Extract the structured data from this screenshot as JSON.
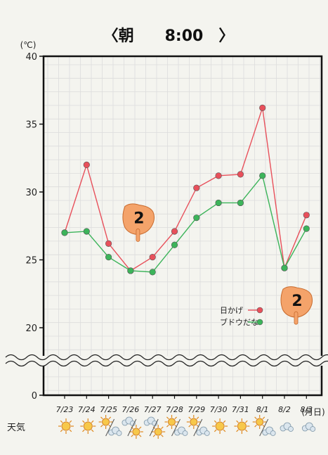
{
  "chart_data": {
    "type": "line",
    "title": "〈朝　　8:00　〉",
    "yunit": "(℃)",
    "xunit": "(月日)",
    "ylim": [
      0,
      40
    ],
    "yticks": [
      0,
      20,
      25,
      30,
      35,
      40
    ],
    "axis_break": "wave between 0 and 20",
    "grid": true,
    "legend_position": "bottom-right",
    "categories": [
      "7/23",
      "7/24",
      "7/25",
      "7/26",
      "7/27",
      "7/28",
      "7/29",
      "7/30",
      "7/31",
      "8/1",
      "8/2",
      "8/3"
    ],
    "series": [
      {
        "name": "日かげ",
        "color": "#e8505b",
        "values": [
          27.0,
          32.0,
          26.2,
          24.2,
          25.2,
          27.1,
          30.3,
          31.2,
          31.3,
          36.2,
          24.4,
          28.3
        ]
      },
      {
        "name": "ブドウだな",
        "color": "#3cb45a",
        "values": [
          27.0,
          27.1,
          25.2,
          24.2,
          24.1,
          26.1,
          28.1,
          29.2,
          29.2,
          31.2,
          24.4,
          27.3
        ]
      }
    ],
    "annotations": [
      {
        "label": "2",
        "category": "7/26",
        "icon": "pointing-hand-icon"
      },
      {
        "label": "2",
        "category": "8/2",
        "icon": "pointing-hand-icon"
      }
    ],
    "weather": {
      "label": "天気",
      "days": [
        {
          "date": "7/23",
          "icons": [
            "sun-icon"
          ]
        },
        {
          "date": "7/24",
          "icons": [
            "sun-icon"
          ]
        },
        {
          "date": "7/25",
          "icons": [
            "sun-icon",
            "cloud-icon"
          ]
        },
        {
          "date": "7/26",
          "icons": [
            "cloud-icon",
            "sun-icon"
          ]
        },
        {
          "date": "7/27",
          "icons": [
            "cloud-icon",
            "sun-icon"
          ]
        },
        {
          "date": "7/28",
          "icons": [
            "sun-icon",
            "cloud-icon"
          ]
        },
        {
          "date": "7/29",
          "icons": [
            "sun-icon",
            "cloud-icon"
          ]
        },
        {
          "date": "7/30",
          "icons": [
            "sun-icon"
          ]
        },
        {
          "date": "7/31",
          "icons": [
            "sun-icon"
          ]
        },
        {
          "date": "8/1",
          "icons": [
            "sun-icon",
            "cloud-icon"
          ]
        },
        {
          "date": "8/2",
          "icons": [
            "cloud-icon"
          ]
        },
        {
          "date": "8/3",
          "icons": [
            "cloud-icon"
          ]
        }
      ]
    }
  }
}
